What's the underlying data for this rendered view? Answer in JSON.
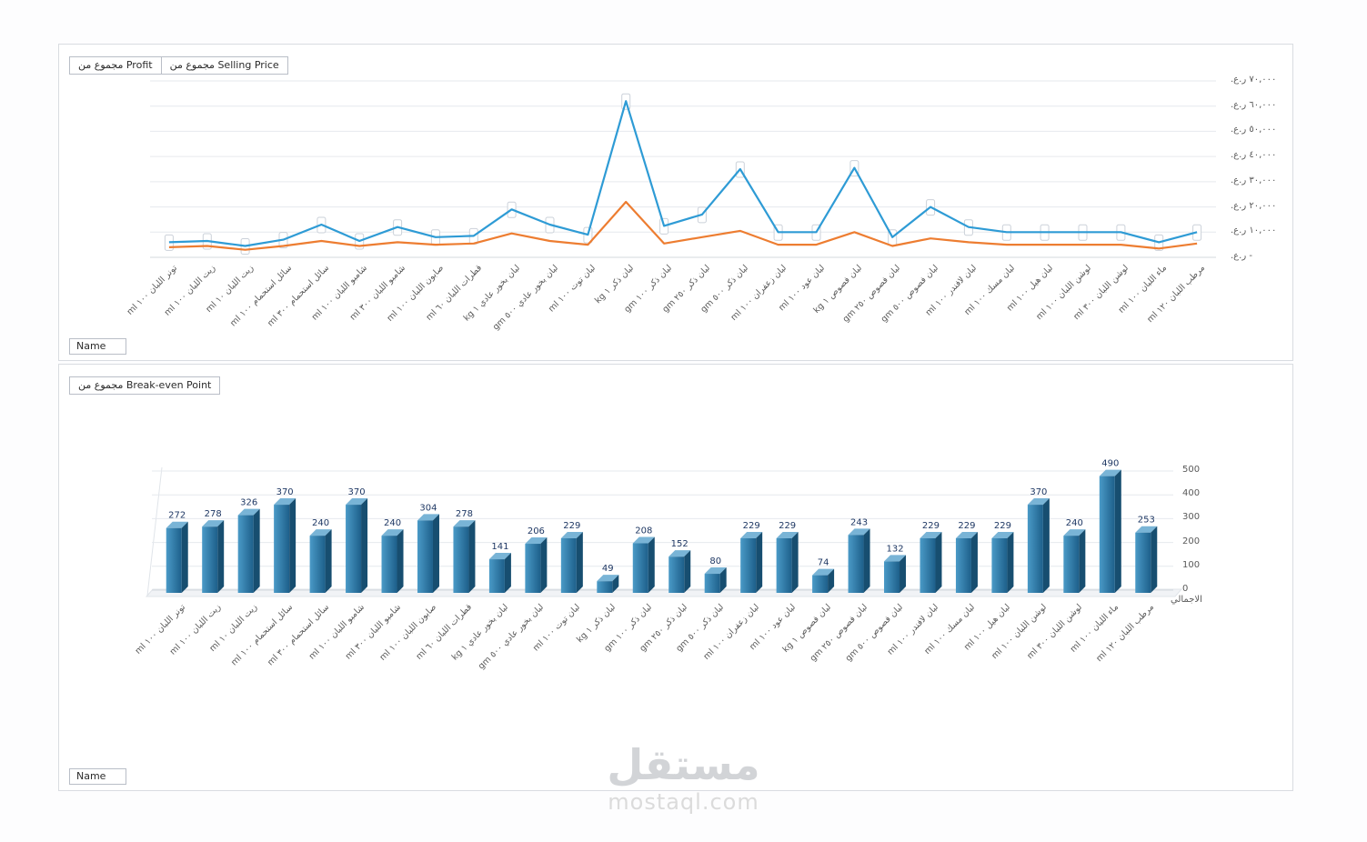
{
  "page": {
    "watermark": {
      "title": "مستقل",
      "subtitle": "mostaql.com"
    }
  },
  "top_panel": {
    "field_buttons": [
      {
        "label": "مجموع من Profit"
      },
      {
        "label": "مجموع من Selling Price"
      }
    ],
    "axis_field_button": "Name"
  },
  "bottom_panel": {
    "field_buttons": [
      {
        "label": "مجموع من Break-even Point"
      }
    ],
    "axis_field_button": "Name",
    "right_axis_caption": "الاجمالي"
  },
  "chart_data": [
    {
      "type": "line",
      "title": "مجموع من Selling Price / مجموع من Profit",
      "legend_position": "none",
      "grid": true,
      "ylim": [
        0,
        70000
      ],
      "y_ticks": [
        0,
        10000,
        20000,
        30000,
        40000,
        50000,
        60000,
        70000
      ],
      "y_tick_labels": [
        "- ر.ع.",
        "١٠,٠٠٠ ر.ع.",
        "٢٠,٠٠٠ ر.ع.",
        "٣٠,٠٠٠ ر.ع.",
        "٤٠,٠٠٠ ر.ع.",
        "٥٠,٠٠٠ ر.ع.",
        "٦٠,٠٠٠ ر.ع.",
        "٧٠,٠٠٠ ر.ع."
      ],
      "x_axis_field": "Name",
      "categories": [
        "تونر اللبان ١٠٠ ml",
        "زيت اللبان ١٠٠ ml",
        "زيت اللبان ١٠ ml",
        "سائل استحمام ١٠٠ ml",
        "سائل استحمام ٣٠٠ ml",
        "شامبو اللبان ١٠٠ ml",
        "شامبو اللبان ٣٠٠ ml",
        "صابون اللبان ١٠٠ ml",
        "قطرات اللبان ٦٠ ml",
        "لبان بخور عادي ١ kg",
        "لبان بخور عادي ٥٠٠ gm",
        "لبان توت ١٠٠ ml",
        "لبان ذكر ١ kg",
        "لبان ذكر ١٠٠ gm",
        "لبان ذكر ٢٥٠ gm",
        "لبان ذكر ٥٠٠ gm",
        "لبان زعفران ١٠٠ ml",
        "لبان عود ١٠٠ ml",
        "لبان فصوص ١ kg",
        "لبان فصوص ٢٥٠ gm",
        "لبان فصوص ٥٠٠ gm",
        "لبان لافندر ١٠٠ ml",
        "لبان مسك ١٠٠ ml",
        "لبان هيل ١٠٠ ml",
        "لوشن اللبان ١٠٠ ml",
        "لوشن اللبان ٣٠٠ ml",
        "ماء اللبان ١٠٠ ml",
        "مرطب اللبان ١٢٠ ml"
      ],
      "series": [
        {
          "name": "مجموع من Selling Price",
          "color": "#2e9bd5",
          "values": [
            6000,
            6500,
            4500,
            7000,
            13000,
            6500,
            12000,
            8000,
            8500,
            19000,
            13000,
            9000,
            62000,
            12500,
            17000,
            35000,
            10000,
            10000,
            35500,
            8000,
            20000,
            12000,
            10000,
            10000,
            10000,
            10000,
            6000,
            10000
          ]
        },
        {
          "name": "مجموع من Profit",
          "color": "#ed7d31",
          "values": [
            4000,
            4500,
            3000,
            4500,
            6500,
            4500,
            6000,
            5000,
            5500,
            9500,
            6500,
            5000,
            22000,
            5500,
            8000,
            10500,
            5000,
            5000,
            10000,
            4500,
            7500,
            6000,
            5000,
            5000,
            5000,
            5000,
            3500,
            5500
          ]
        }
      ]
    },
    {
      "type": "bar",
      "title": "مجموع من Break-even Point",
      "legend_position": "none",
      "grid": true,
      "ylim": [
        0,
        500
      ],
      "y_ticks": [
        0,
        100,
        200,
        300,
        400,
        500
      ],
      "x_axis_field": "Name",
      "right_axis_caption": "الاجمالي",
      "bar_color": "#1f6391",
      "categories": [
        "تونر اللبان ١٠٠ ml",
        "زيت اللبان ١٠٠ ml",
        "زيت اللبان ١٠ ml",
        "سائل استحمام ١٠٠ ml",
        "سائل استحمام ٣٠٠ ml",
        "شامبو اللبان ١٠٠ ml",
        "شامبو اللبان ٣٠٠ ml",
        "صابون اللبان ١٠٠ ml",
        "قطرات اللبان ٦٠ ml",
        "لبان بخور عادي ١ kg",
        "لبان بخور عادي ٥٠٠ gm",
        "لبان توت ١٠٠ ml",
        "لبان ذكر ١ kg",
        "لبان ذكر ١٠٠ gm",
        "لبان ذكر ٢٥٠ gm",
        "لبان ذكر ٥٠٠ gm",
        "لبان زعفران ١٠٠ ml",
        "لبان عود ١٠٠ ml",
        "لبان فصوص ١ kg",
        "لبان فصوص ٢٥٠ gm",
        "لبان فصوص ٥٠٠ gm",
        "لبان لافندر ١٠٠ ml",
        "لبان مسك ١٠٠ ml",
        "لبان هيل ١٠٠ ml",
        "لوشن اللبان ١٠٠ ml",
        "لوشن اللبان ٣٠٠ ml",
        "ماء اللبان ١٠٠ ml",
        "مرطب اللبان ١٢٠ ml"
      ],
      "values": [
        272,
        278,
        326,
        370,
        240,
        370,
        240,
        304,
        278,
        141,
        206,
        229,
        49,
        208,
        152,
        80,
        229,
        229,
        74,
        243,
        132,
        229,
        229,
        229,
        370,
        240,
        490,
        253
      ]
    }
  ]
}
